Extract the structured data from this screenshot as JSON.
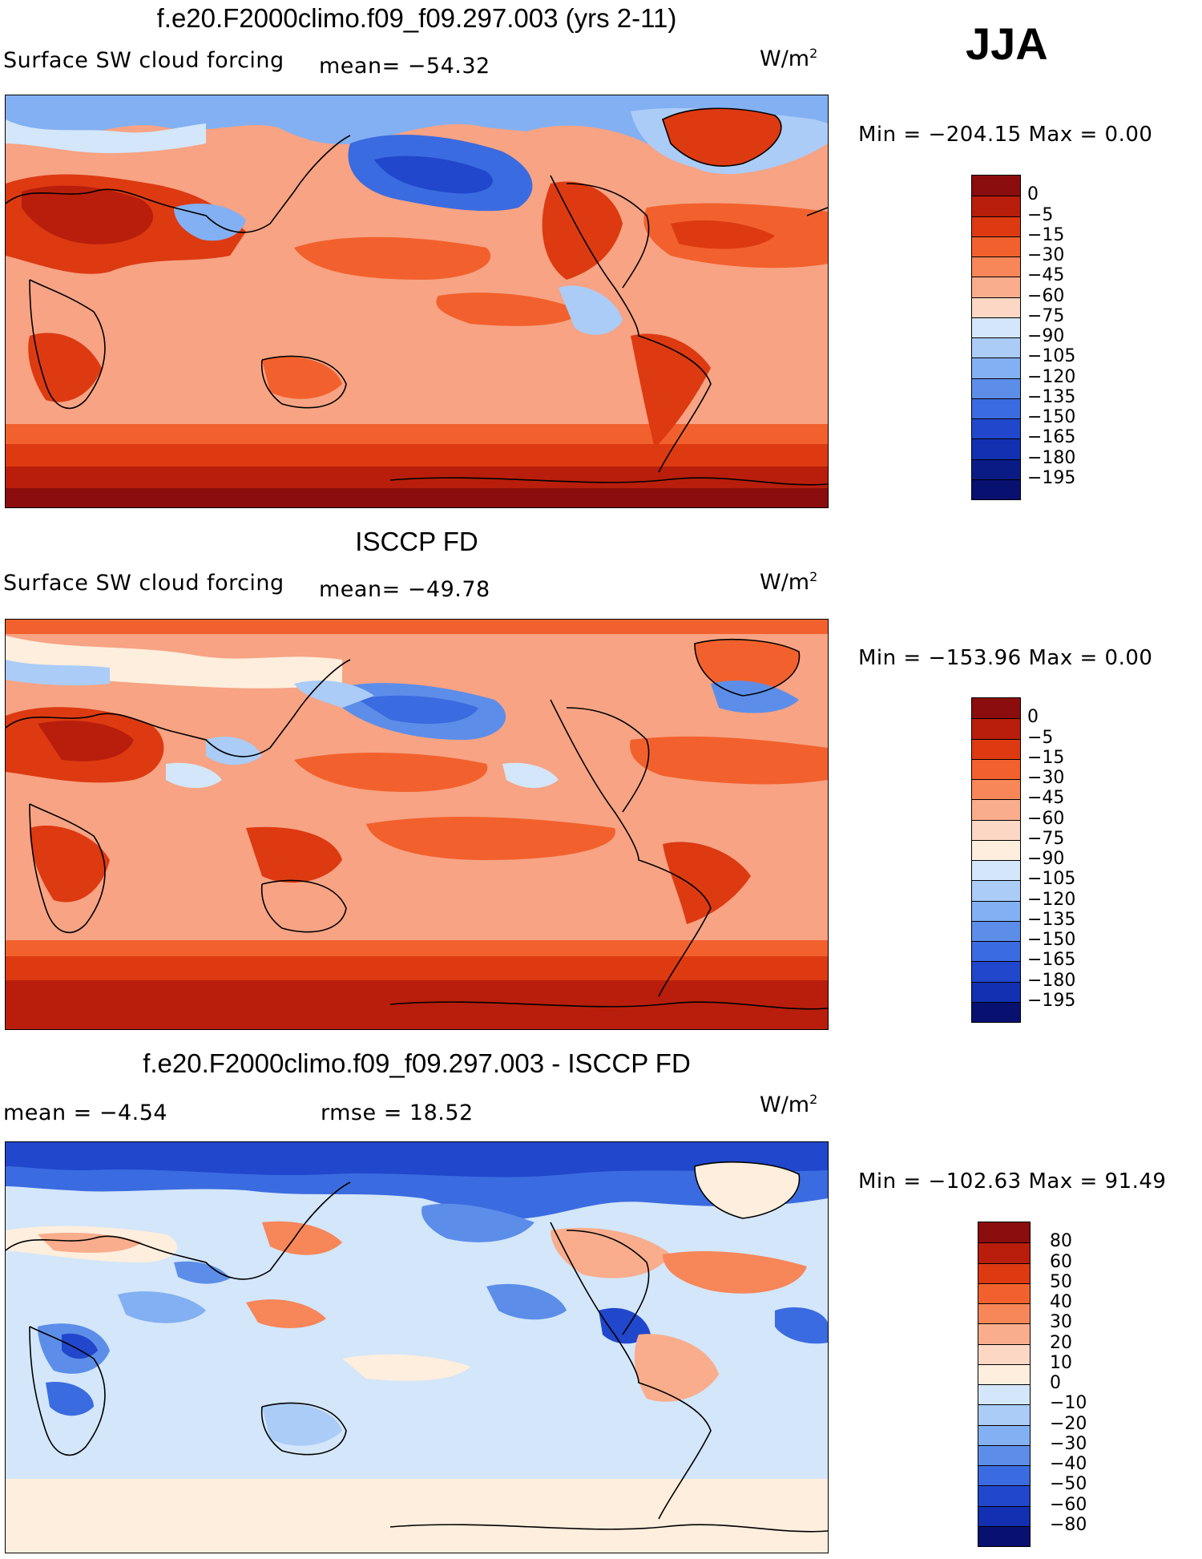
{
  "season": "JJA",
  "panels": [
    {
      "title": "f.e20.F2000climo.f09_f09.297.003 (yrs 2-11)",
      "variable": "Surface SW cloud forcing",
      "stat": "mean=  −54.32",
      "units": "W/m",
      "units_exp": "2",
      "min_max": "Min  =  −204.15  Max  =      0.00",
      "colorbar": {
        "labels": [
          "0",
          "−5",
          "−15",
          "−30",
          "−45",
          "−60",
          "−75",
          "−90",
          "−105",
          "−120",
          "−135",
          "−150",
          "−165",
          "−180",
          "−195"
        ],
        "colors": [
          "#8b0d0d",
          "#b81e0b",
          "#dd3a12",
          "#f2612d",
          "#f78659",
          "#f9ad8c",
          "#fcd8c4",
          "#d3e6fa",
          "#aaccf7",
          "#83b0f2",
          "#5c8ee9",
          "#3b6be0",
          "#2047cc",
          "#1230b1",
          "#0b1b86",
          "#081070"
        ]
      }
    },
    {
      "title": "ISCCP FD",
      "variable": "Surface SW cloud forcing",
      "stat": "mean=  −49.78",
      "units": "W/m",
      "units_exp": "2",
      "min_max": "Min  =  −153.96  Max  =      0.00",
      "colorbar": {
        "labels": [
          "0",
          "−5",
          "−15",
          "−30",
          "−45",
          "−60",
          "−75",
          "−90",
          "−105",
          "−120",
          "−135",
          "−150",
          "−165",
          "−180",
          "−195"
        ],
        "colors": [
          "#8b0d0d",
          "#b81e0b",
          "#dd3a12",
          "#f2612d",
          "#f78659",
          "#f9ad8c",
          "#fcd8c4",
          "#fdeedd",
          "#d3e6fa",
          "#aaccf7",
          "#83b0f2",
          "#5c8ee9",
          "#3b6be0",
          "#2047cc",
          "#1230b1",
          "#081070"
        ]
      }
    },
    {
      "title": "f.e20.F2000climo.f09_f09.297.003 - ISCCP FD",
      "mean": "mean  =    −4.54",
      "rmse": "rmse  =    18.52",
      "units": "W/m",
      "units_exp": "2",
      "min_max": "Min  =  −102.63  Max  =    91.49",
      "colorbar": {
        "labels": [
          "80",
          "60",
          "50",
          "40",
          "30",
          "20",
          "10",
          "0",
          "−10",
          "−20",
          "−30",
          "−40",
          "−50",
          "−60",
          "−80"
        ],
        "colors": [
          "#8b0d0d",
          "#b81e0b",
          "#dd3a12",
          "#f2612d",
          "#f78659",
          "#f9ad8c",
          "#fcd8c4",
          "#fdeedd",
          "#d3e6fa",
          "#aaccf7",
          "#83b0f2",
          "#5c8ee9",
          "#3b6be0",
          "#2047cc",
          "#1230b1",
          "#081070"
        ]
      }
    }
  ]
}
